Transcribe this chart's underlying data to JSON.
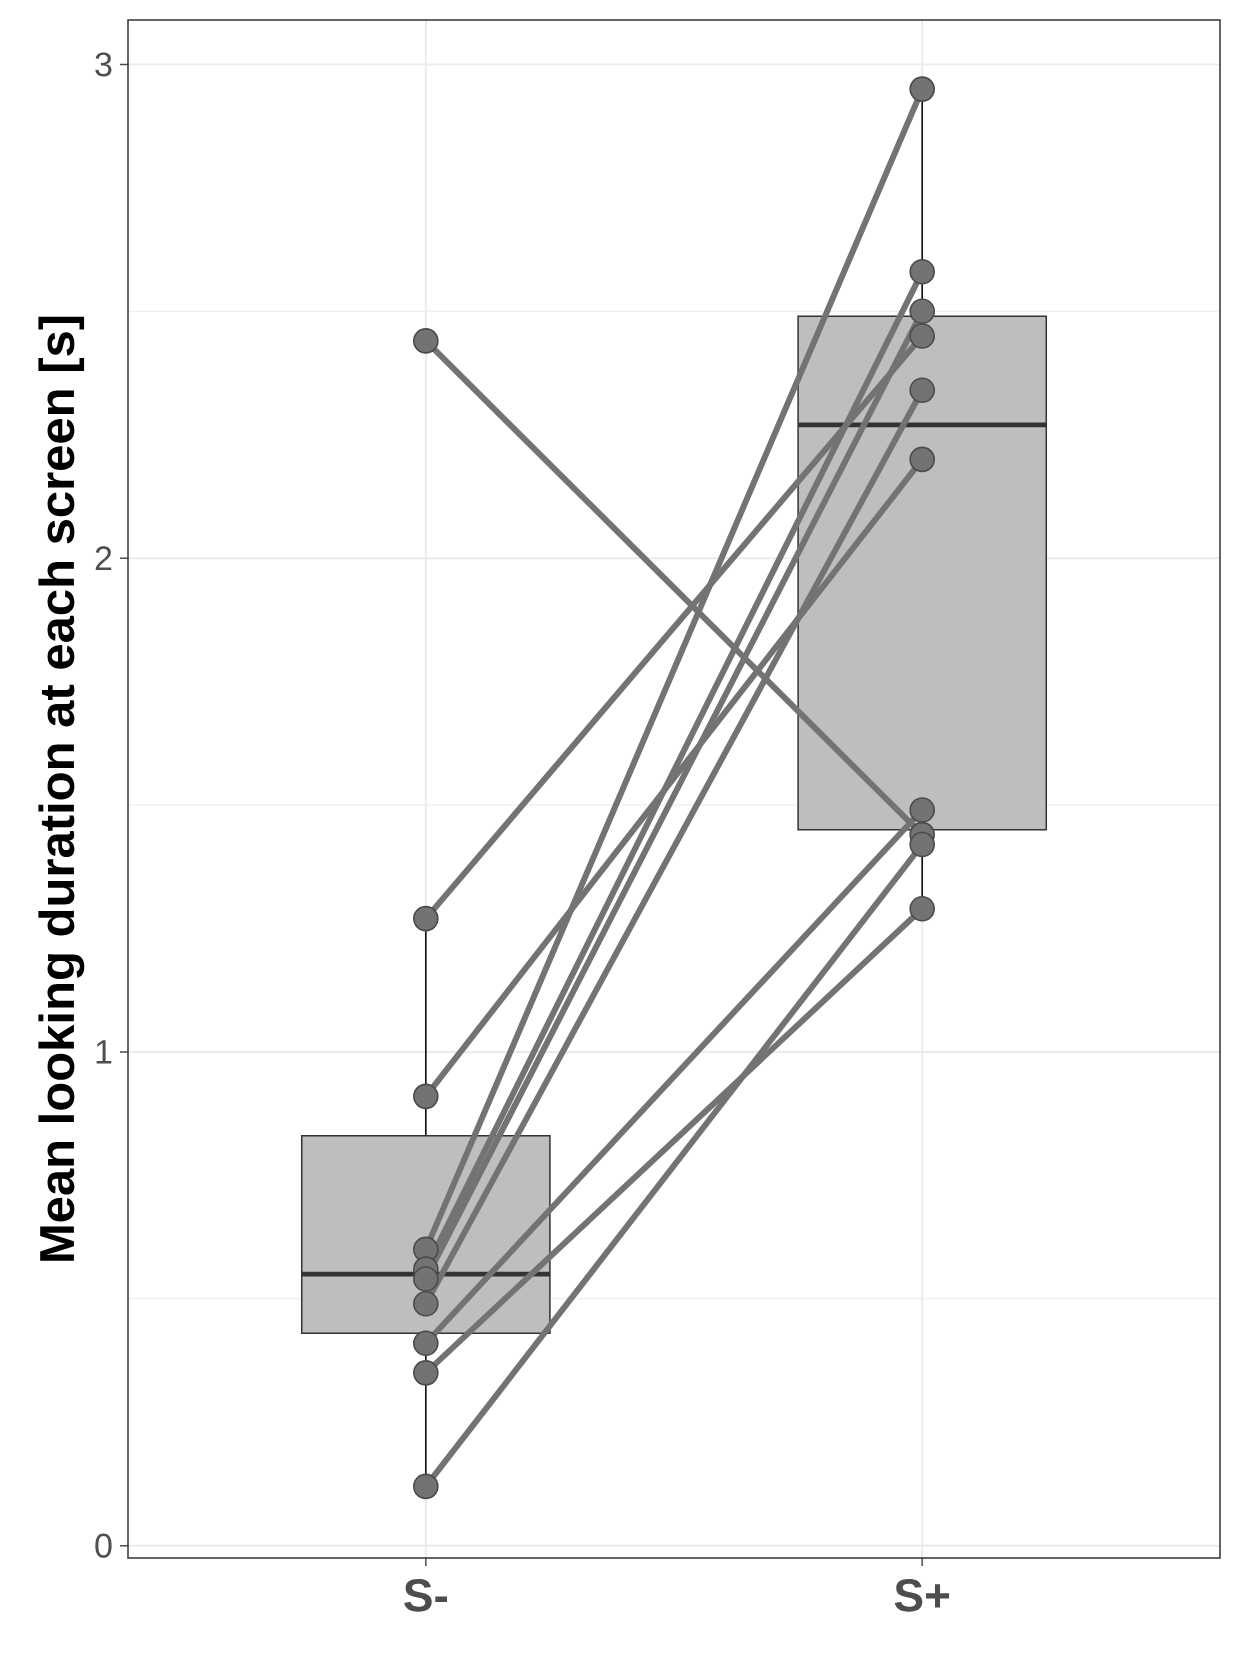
{
  "chart_data": {
    "type": "box",
    "ylabel": "Mean looking duration at each screen [s]",
    "categories": [
      "S-",
      "S+"
    ],
    "boxes": [
      {
        "low": 0.12,
        "q1": 0.43,
        "median": 0.55,
        "q3": 0.83,
        "high": 1.27
      },
      {
        "low": 1.29,
        "q1": 1.45,
        "median": 2.27,
        "q3": 2.49,
        "high": 2.95
      }
    ],
    "color": "#bebebe",
    "ylim": [
      -0.025,
      3.09
    ],
    "yticks": [
      0,
      1,
      2,
      3
    ],
    "grid": true,
    "marker": "circle",
    "series": [
      {
        "type": "line",
        "values": [
          2.44,
          1.44
        ],
        "color": "#737373"
      },
      {
        "type": "line",
        "values": [
          1.27,
          2.45
        ],
        "color": "#737373"
      },
      {
        "type": "line",
        "values": [
          0.91,
          2.2
        ],
        "color": "#737373"
      },
      {
        "type": "line",
        "values": [
          0.6,
          2.95
        ],
        "color": "#737373"
      },
      {
        "type": "line",
        "values": [
          0.56,
          2.58
        ],
        "color": "#737373"
      },
      {
        "type": "line",
        "values": [
          0.54,
          2.5
        ],
        "color": "#737373"
      },
      {
        "type": "line",
        "values": [
          0.49,
          2.34
        ],
        "color": "#737373"
      },
      {
        "type": "line",
        "values": [
          0.41,
          1.49
        ],
        "color": "#737373"
      },
      {
        "type": "line",
        "values": [
          0.35,
          1.29
        ],
        "color": "#737373"
      },
      {
        "type": "line",
        "values": [
          0.12,
          1.42
        ],
        "color": "#737373"
      }
    ]
  }
}
